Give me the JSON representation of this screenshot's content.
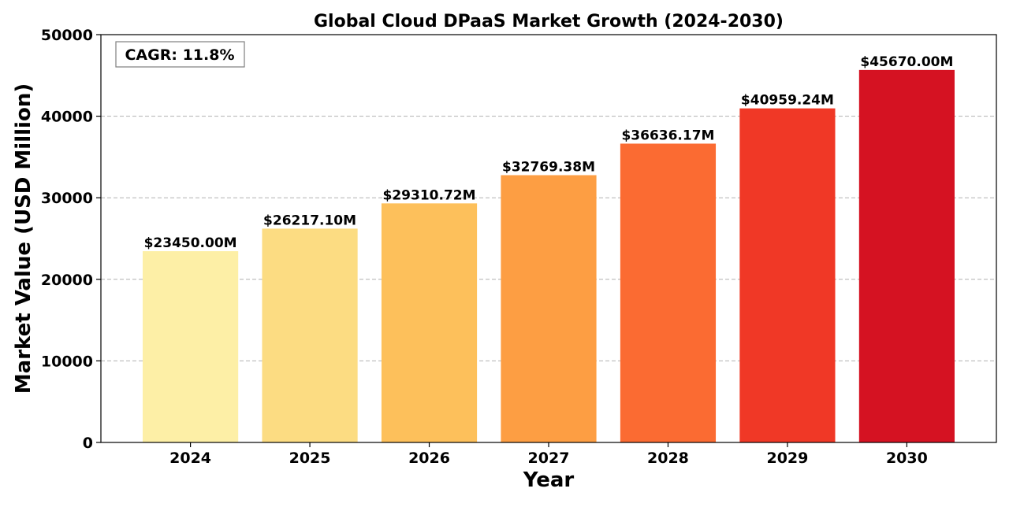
{
  "chart_data": {
    "type": "bar",
    "title": "Global Cloud DPaaS Market Growth (2024-2030)",
    "xlabel": "Year",
    "ylabel": "Market Value (USD Million)",
    "categories": [
      "2024",
      "2025",
      "2026",
      "2027",
      "2028",
      "2029",
      "2030"
    ],
    "values": [
      23450.0,
      26217.1,
      29310.72,
      32769.38,
      36636.17,
      40959.24,
      45670.0
    ],
    "value_labels": [
      "$23450.00M",
      "$26217.10M",
      "$29310.72M",
      "$32769.38M",
      "$36636.17M",
      "$40959.24M",
      "$45670.00M"
    ],
    "bar_colors": [
      "#fdefa6",
      "#fcdc82",
      "#fdc05b",
      "#fd9e43",
      "#fb6b32",
      "#f03826",
      "#d51222"
    ],
    "ylim": [
      0,
      50000
    ],
    "yticks": [
      0,
      10000,
      20000,
      30000,
      40000,
      50000
    ],
    "ytick_labels": [
      "0",
      "10000",
      "20000",
      "30000",
      "40000",
      "50000"
    ],
    "grid": "y-dashed",
    "annotation": "CAGR: 11.8%",
    "annotation_position": "top-left"
  }
}
